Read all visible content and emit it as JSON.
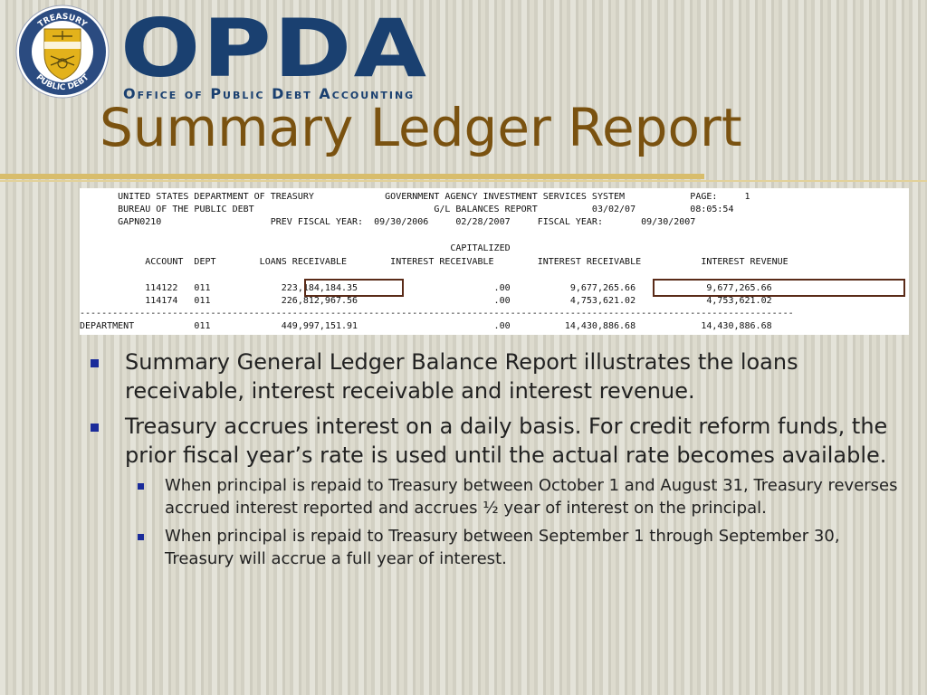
{
  "header": {
    "seal_top_text": "TREASURY",
    "seal_bottom_text": "PUBLIC DEBT",
    "logo_word": "OPDA",
    "logo_subtitle": "Office of Public Debt Accounting"
  },
  "slide": {
    "title": "Summary Ledger Report"
  },
  "report": {
    "lines": [
      "       UNITED STATES DEPARTMENT OF TREASURY             GOVERNMENT AGENCY INVESTMENT SERVICES SYSTEM            PAGE:     1",
      "       BUREAU OF THE PUBLIC DEBT                                 G/L BALANCES REPORT          03/02/07          08:05:54",
      "       GAPN0210                    PREV FISCAL YEAR:  09/30/2006     02/28/2007     FISCAL YEAR:       09/30/2007",
      "",
      "                                                                    CAPITALIZED",
      "            ACCOUNT  DEPT        LOANS RECEIVABLE        INTEREST RECEIVABLE        INTEREST RECEIVABLE           INTEREST REVENUE",
      "",
      "            114122   011             223,184,184.35                         .00           9,677,265.66             9,677,265.66",
      "            114174   011             226,812,967.56                         .00           4,753,621.02             4,753,621.02",
      "-----------------------------------------------------------------------------------------------------------------------------------",
      "DEPARTMENT           011             449,997,151.91                         .00          14,430,886.68            14,430,886.68"
    ]
  },
  "bullets": [
    {
      "text": "Summary General Ledger Balance Report illustrates the loans receivable, interest receivable and interest revenue."
    },
    {
      "text": "Treasury accrues interest on a daily basis.  For credit reform funds, the prior fiscal year’s rate is used until the actual rate becomes available.",
      "sub": [
        "When principal is repaid to Treasury between October 1 and August 31, Treasury reverses accrued interest reported and accrues ½ year of interest on the principal.",
        "When principal is repaid to Treasury between September 1 through September 30, Treasury will accrue a full year of interest."
      ]
    }
  ],
  "colors": {
    "background": "#d9d7c9",
    "title": "#7a5210",
    "logo": "#1a4070",
    "rule": "#d8bd6c",
    "highlight_box": "#5a2b18",
    "bullet": "#1a2b9a"
  }
}
